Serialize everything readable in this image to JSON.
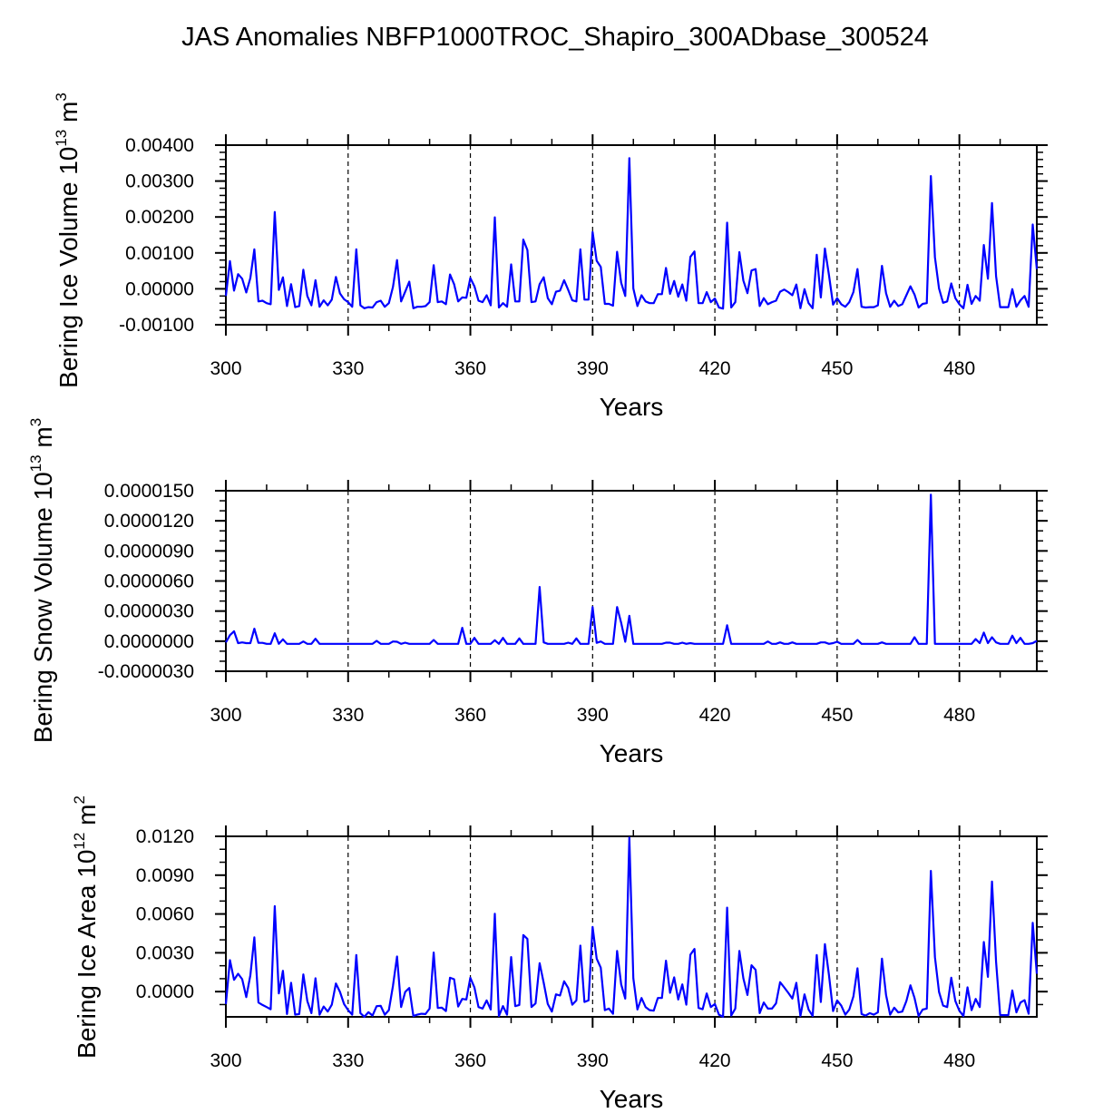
{
  "title": "JAS Anomalies NBFP1000TROC_Shapiro_300ADbase_300524",
  "line_color": "#0000ff",
  "chart_data": [
    {
      "type": "line",
      "ylabel": {
        "text": "Bering Ice Volume 10",
        "exp": "13",
        "unit": " m",
        "unit_exp": "3"
      },
      "xlabel": "Years",
      "xlim": [
        300,
        499
      ],
      "ylim": [
        -0.001,
        0.004
      ],
      "x_ticks": [
        300,
        330,
        360,
        390,
        420,
        450,
        480
      ],
      "x_tick_labels": [
        "300",
        "330",
        "360",
        "390",
        "420",
        "450",
        "480"
      ],
      "y_ticks": [
        0.004,
        0.003,
        0.002,
        0.001,
        0.0,
        -0.001
      ],
      "y_tick_labels": [
        "0.00400",
        "0.00300",
        "0.00200",
        "0.00100",
        "0.00000",
        "-0.00100"
      ],
      "grid": "dashed vertical at 330-480",
      "x_start": 300,
      "values": [
        -0.0002,
        0.00077,
        -5e-05,
        0.00041,
        0.00028,
        -0.0001,
        0.0003,
        0.0011,
        -0.00035,
        -0.00033,
        -0.0004,
        -0.00043,
        0.00214,
        -3e-05,
        0.00032,
        -0.00048,
        0.00013,
        -0.00051,
        -0.00048,
        0.00053,
        -0.0002,
        -0.00046,
        0.00024,
        -0.0005,
        -0.00032,
        -0.00046,
        -0.0003,
        0.00033,
        -0.00013,
        -0.00029,
        -0.00037,
        -0.0005,
        0.0011,
        -0.00046,
        -0.00054,
        -0.00051,
        -0.00052,
        -0.00037,
        -0.00033,
        -0.0005,
        -0.0004,
        5e-05,
        0.0008,
        -0.00035,
        -8e-05,
        0.0002,
        -0.00054,
        -0.0005,
        -0.0005,
        -0.00048,
        -0.00037,
        0.00066,
        -0.00037,
        -0.00035,
        -0.00043,
        0.0004,
        0.00013,
        -0.00035,
        -0.00024,
        -0.00025,
        0.0003,
        7e-05,
        -0.00033,
        -0.00037,
        -0.00018,
        -0.00046,
        0.00199,
        -0.00052,
        -0.0004,
        -0.0005,
        0.00068,
        -0.00035,
        -0.00035,
        0.00137,
        0.00108,
        -0.00037,
        -0.00035,
        0.00013,
        0.00032,
        -0.00026,
        -0.00043,
        -8e-05,
        -5e-05,
        0.00024,
        -3e-05,
        -0.00032,
        -0.00035,
        0.0011,
        -0.0003,
        -0.0003,
        0.00158,
        0.00078,
        0.00061,
        -0.00042,
        -0.00042,
        -0.00047,
        0.00103,
        0.00017,
        -0.0002,
        0.00364,
        1e-05,
        -0.00048,
        -0.00018,
        -0.00035,
        -0.0004,
        -0.0004,
        -0.00015,
        -0.00015,
        0.00058,
        -0.00014,
        0.00022,
        -0.00022,
        0.00012,
        -0.00033,
        0.00089,
        0.00104,
        -0.0004,
        -0.0004,
        -9e-05,
        -0.00037,
        -0.00027,
        -0.00052,
        -0.00055,
        0.00184,
        -0.00052,
        -0.00037,
        0.00102,
        0.00023,
        -0.00012,
        0.00051,
        0.00055,
        -0.00048,
        -0.00026,
        -0.00043,
        -0.00037,
        -0.00033,
        -8e-05,
        -2e-05,
        -9e-05,
        -0.00018,
        0.00012,
        -0.00054,
        -1e-05,
        -0.0004,
        -0.00054,
        0.00095,
        -0.00024,
        0.00112,
        0.00038,
        -0.00044,
        -0.00026,
        -0.00043,
        -0.0005,
        -0.00037,
        -9e-05,
        0.00055,
        -0.0005,
        -0.00052,
        -0.00051,
        -0.00051,
        -0.00046,
        0.00064,
        -0.00012,
        -0.0005,
        -0.00033,
        -0.00048,
        -0.00043,
        -0.00018,
        7e-05,
        -0.00016,
        -0.00052,
        -0.00042,
        -0.0004,
        0.00314,
        0.00088,
        1e-05,
        -0.00039,
        -0.00035,
        0.00015,
        -0.00026,
        -0.00043,
        -0.00054,
        0.00011,
        -0.00042,
        -0.0002,
        -0.00033,
        0.00122,
        0.00028,
        0.00239,
        0.00035,
        -0.00051,
        -0.00051,
        -0.00051,
        -1e-05,
        -0.0005,
        -0.00032,
        -0.0002,
        -0.0005,
        0.00179,
        0.00055
      ]
    },
    {
      "type": "line",
      "ylabel": {
        "text": "Bering Snow Volume 10",
        "exp": "13",
        "unit": " m",
        "unit_exp": "3"
      },
      "xlabel": "Years",
      "xlim": [
        300,
        499
      ],
      "ylim": [
        -3e-06,
        1.5e-05
      ],
      "x_ticks": [
        300,
        330,
        360,
        390,
        420,
        450,
        480
      ],
      "x_tick_labels": [
        "300",
        "330",
        "360",
        "390",
        "420",
        "450",
        "480"
      ],
      "y_ticks": [
        1.5e-05,
        1.2e-05,
        9e-06,
        6e-06,
        3e-06,
        0.0,
        -3e-06
      ],
      "y_tick_labels": [
        "0.0000150",
        "0.0000120",
        "0.0000090",
        "0.0000060",
        "0.0000030",
        "0.0000000",
        "-0.0000030"
      ],
      "grid": "dashed vertical at 330-480",
      "x_start": 300,
      "values": [
        -1.2e-07,
        6e-07,
        9.9e-07,
        -2e-07,
        -1.2e-07,
        -2e-07,
        -2e-07,
        1.24e-06,
        -1.7e-07,
        -1.7e-07,
        -2.7e-07,
        -2.7e-07,
        7.9e-07,
        -2.7e-07,
        1.8e-07,
        -2.7e-07,
        -2.7e-07,
        -2.7e-07,
        -2.7e-07,
        -3e-08,
        -2.7e-07,
        -2.7e-07,
        2.4e-07,
        -2.7e-07,
        -2.7e-07,
        -2.7e-07,
        -2.7e-07,
        -2.7e-07,
        -2.7e-07,
        -2.7e-07,
        -2.7e-07,
        -2.7e-07,
        -2.7e-07,
        -2.7e-07,
        -2.7e-07,
        -2.7e-07,
        -2.7e-07,
        3e-08,
        -2.7e-07,
        -2.7e-07,
        -2.7e-07,
        -3e-08,
        -6e-08,
        -2.7e-07,
        -1.5e-07,
        -2.7e-07,
        -2.7e-07,
        -2.7e-07,
        -2.7e-07,
        -2.7e-07,
        -2.7e-07,
        1.2e-07,
        -2.7e-07,
        -2.7e-07,
        -2.7e-07,
        -2.7e-07,
        -2.7e-07,
        -2.7e-07,
        1.33e-06,
        -2.7e-07,
        -2.7e-07,
        3.3e-07,
        -2.7e-07,
        -2.7e-07,
        -2.7e-07,
        -2.7e-07,
        9e-08,
        -2.7e-07,
        3.3e-07,
        -2.7e-07,
        -2.7e-07,
        -2.7e-07,
        2.7e-07,
        -2.7e-07,
        -2.7e-07,
        -2.7e-07,
        -2.7e-07,
        5.4e-06,
        -1.2e-07,
        -2.7e-07,
        -2.7e-07,
        -2.7e-07,
        -2.7e-07,
        -2.7e-07,
        -1.5e-07,
        -2.7e-07,
        2.7e-07,
        -2.7e-07,
        -2.7e-07,
        -2.7e-07,
        3.4e-06,
        -1.7e-07,
        -3e-08,
        -2.7e-07,
        -2.7e-07,
        -2.7e-07,
        3.4e-06,
        1.83e-06,
        -6e-08,
        2.53e-06,
        -2.7e-07,
        -2.7e-07,
        -2.7e-07,
        -2.7e-07,
        -2.7e-07,
        -2.7e-07,
        -2.7e-07,
        -2.7e-07,
        -1.5e-07,
        -1.5e-07,
        -2.7e-07,
        -2.7e-07,
        -1.5e-07,
        -2.7e-07,
        -2e-07,
        -2.7e-07,
        -2.7e-07,
        -2.7e-07,
        -2.7e-07,
        -2.7e-07,
        -2.7e-07,
        -2.7e-07,
        -2.7e-07,
        1.59e-06,
        -2.7e-07,
        -2.7e-07,
        -2.7e-07,
        -2.7e-07,
        -2.7e-07,
        -2.7e-07,
        -2.7e-07,
        -2.7e-07,
        -2.7e-07,
        -3e-08,
        -2.7e-07,
        -2.7e-07,
        -1.2e-07,
        -2.7e-07,
        -2.7e-07,
        -1.2e-07,
        -2.7e-07,
        -2.7e-07,
        -2.7e-07,
        -2.7e-07,
        -2.7e-07,
        -2.7e-07,
        -1.2e-07,
        -1.2e-07,
        -2.7e-07,
        -2e-07,
        -6e-08,
        -2.7e-07,
        -2.7e-07,
        -2.7e-07,
        -2.7e-07,
        1.2e-07,
        -2.7e-07,
        -2.7e-07,
        -2.7e-07,
        -2.7e-07,
        -2.7e-07,
        -1.2e-07,
        -2.7e-07,
        -2.7e-07,
        -2.7e-07,
        -2.7e-07,
        -2.7e-07,
        -2.7e-07,
        -2.7e-07,
        3.9e-07,
        -2.7e-07,
        -2.7e-07,
        -2.7e-07,
        1.46e-05,
        -2.7e-07,
        -2.7e-07,
        -2.7e-07,
        -2.7e-07,
        -2.7e-07,
        -2.7e-07,
        -2.7e-07,
        -2.7e-07,
        -2.7e-07,
        -2.7e-07,
        2.1e-07,
        -2e-07,
        8.5e-07,
        -2e-07,
        3.9e-07,
        -1.2e-07,
        -2.7e-07,
        -2.7e-07,
        -2.7e-07,
        5.5e-07,
        -2e-07,
        3.3e-07,
        -2.7e-07,
        -2.7e-07,
        -2e-07,
        3e-08
      ]
    },
    {
      "type": "line",
      "ylabel": {
        "text": "Bering Ice Area 10",
        "exp": "12",
        "unit": " m",
        "unit_exp": "2"
      },
      "xlabel": "Years",
      "xlim": [
        300,
        499
      ],
      "ylim": [
        -0.00195,
        0.012
      ],
      "x_ticks": [
        300,
        330,
        360,
        390,
        420,
        450,
        480
      ],
      "x_tick_labels": [
        "300",
        "330",
        "360",
        "390",
        "420",
        "450",
        "480"
      ],
      "y_ticks": [
        0.012,
        0.009,
        0.006,
        0.003,
        0.0
      ],
      "y_tick_labels": [
        "0.0120",
        "0.0090",
        "0.0060",
        "0.0030",
        "0.0000"
      ],
      "grid": "dashed vertical at 330-480",
      "x_start": 300,
      "values": [
        -0.00096,
        0.00243,
        0.00091,
        0.00138,
        0.00096,
        -0.00042,
        0.00126,
        0.00419,
        -0.00084,
        -0.00103,
        -0.00119,
        -0.00136,
        0.0066,
        -0.00014,
        0.00161,
        -0.00173,
        0.00068,
        -0.00178,
        -0.00173,
        0.00133,
        -0.00073,
        -0.00166,
        0.00103,
        -0.00178,
        -0.00115,
        -0.00154,
        -0.00101,
        0.00063,
        -2e-05,
        -0.00096,
        -0.00143,
        -0.00178,
        0.00283,
        -0.00166,
        -0.00194,
        -0.00159,
        -0.00185,
        -0.00112,
        -0.0011,
        -0.00178,
        -0.00143,
        0.00044,
        0.00271,
        -0.00119,
        -2e-05,
        0.00028,
        -0.00189,
        -0.00178,
        -0.00171,
        -0.00173,
        -0.00131,
        0.00302,
        -0.00126,
        -0.00124,
        -0.0015,
        0.00107,
        0.00096,
        -0.00115,
        -0.00056,
        -0.00061,
        0.00107,
        0.00033,
        -0.00119,
        -0.00131,
        -0.00068,
        -0.00138,
        0.00601,
        -0.00189,
        -0.00112,
        -0.00178,
        0.00267,
        -0.00112,
        -0.00103,
        0.00437,
        0.00407,
        -0.00119,
        -0.00091,
        0.0022,
        0.00068,
        -0.00096,
        -0.00154,
        -0.00021,
        -0.0003,
        0.0008,
        0.00028,
        -0.00101,
        -0.00068,
        0.00355,
        -0.0008,
        -0.00068,
        0.005,
        0.00255,
        0.00185,
        -0.00143,
        -0.00131,
        -0.00171,
        0.00314,
        0.00056,
        -0.00054,
        0.0119,
        0.00103,
        -0.00138,
        -0.00049,
        -0.00119,
        -0.00143,
        -0.00147,
        -0.00049,
        -0.00049,
        0.00239,
        -9e-05,
        0.0011,
        -0.00061,
        0.00056,
        -0.00101,
        0.00285,
        0.0033,
        -0.00126,
        -0.00136,
        -0.00014,
        -0.00119,
        -0.00096,
        -0.00178,
        -0.00194,
        0.00649,
        -0.00185,
        -0.00131,
        0.00314,
        0.00103,
        -0.00026,
        0.00204,
        0.00168,
        -0.00166,
        -0.00084,
        -0.00131,
        -0.00131,
        -0.00091,
        0.00073,
        0.00033,
        -9e-05,
        -0.00054,
        0.00068,
        -0.00189,
        -0.00021,
        -0.00138,
        -0.00189,
        0.00283,
        -0.0008,
        0.00367,
        0.00126,
        -0.0015,
        -0.00068,
        -0.00108,
        -0.00178,
        -0.00138,
        -0.00038,
        0.0018,
        -0.00173,
        -0.00185,
        -0.00166,
        -0.00178,
        -0.00161,
        0.00255,
        -0.00026,
        -0.00178,
        -0.00124,
        -0.00161,
        -0.00154,
        -0.00073,
        0.00049,
        -0.00049,
        -0.00189,
        -0.00138,
        -0.00131,
        0.00933,
        0.00267,
        -2e-05,
        -0.00108,
        -0.00119,
        0.00107,
        -0.00073,
        -0.00147,
        -0.00189,
        0.00033,
        -0.00143,
        -0.00056,
        -0.00119,
        0.00383,
        0.00114,
        0.00851,
        0.0023,
        -0.00182,
        -0.00182,
        -0.00182,
        9e-05,
        -0.00161,
        -0.00084,
        -0.00066,
        -0.00171,
        0.00531,
        0.00138
      ]
    }
  ]
}
